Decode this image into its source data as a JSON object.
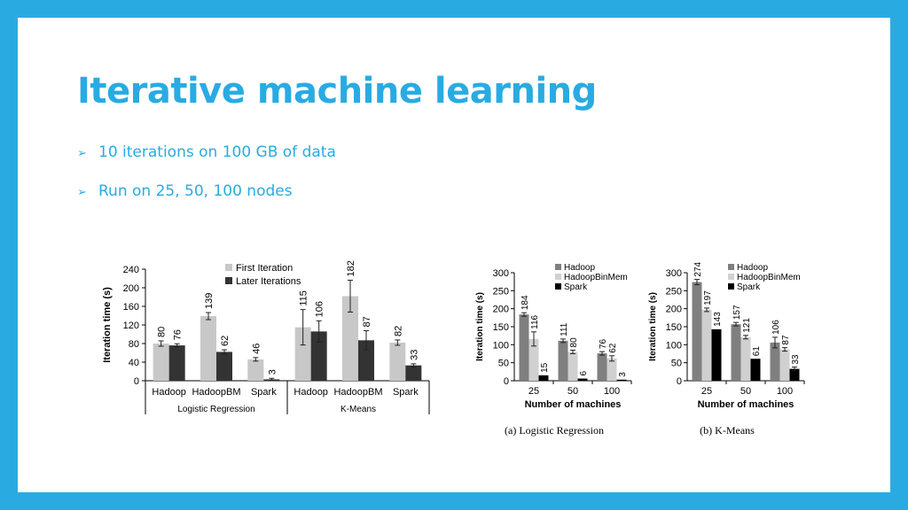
{
  "slide": {
    "title": "Iterative machine learning",
    "bullets": [
      "10 iterations on 100 GB of data",
      "Run on 25, 50, 100 nodes"
    ],
    "colors": {
      "accent": "#29abe2"
    }
  },
  "chart_data": [
    {
      "type": "bar",
      "ylabel": "Iteration time (s)",
      "ylim": [
        0,
        240
      ],
      "yticks": [
        0,
        40,
        80,
        120,
        160,
        200,
        240
      ],
      "legend_position": "top-center",
      "groups": [
        {
          "label": "Logistic Regression",
          "categories": [
            "Hadoop",
            "HadoopBM",
            "Spark"
          ]
        },
        {
          "label": "K-Means",
          "categories": [
            "Hadoop",
            "HadoopBM",
            "Spark"
          ]
        }
      ],
      "series": [
        {
          "name": "First Iteration",
          "color": "#c8c8c8",
          "values": [
            80,
            139,
            46,
            115,
            182,
            82
          ]
        },
        {
          "name": "Later Iterations",
          "color": "#333333",
          "values": [
            76,
            62,
            3,
            106,
            87,
            33
          ]
        }
      ]
    },
    {
      "type": "bar",
      "ylabel": "Iteration time (s)",
      "xlabel": "Number of machines",
      "caption": "(a) Logistic Regression",
      "categories": [
        "25",
        "50",
        "100"
      ],
      "ylim": [
        0,
        300
      ],
      "yticks": [
        0,
        50,
        100,
        150,
        200,
        250,
        300
      ],
      "legend_position": "top-right",
      "series": [
        {
          "name": "Hadoop",
          "color": "#7f7f7f",
          "values": [
            184,
            111,
            76
          ]
        },
        {
          "name": "HadoopBinMem",
          "color": "#d0d0d0",
          "values": [
            116,
            80,
            62
          ]
        },
        {
          "name": "Spark",
          "color": "#000000",
          "values": [
            15,
            6,
            3
          ]
        }
      ]
    },
    {
      "type": "bar",
      "ylabel": "Iteration time (s)",
      "xlabel": "Number of machines",
      "caption": "(b) K-Means",
      "categories": [
        "25",
        "50",
        "100"
      ],
      "ylim": [
        0,
        300
      ],
      "yticks": [
        0,
        50,
        100,
        150,
        200,
        250,
        300
      ],
      "legend_position": "top-right",
      "series": [
        {
          "name": "Hadoop",
          "color": "#7f7f7f",
          "values": [
            274,
            157,
            106
          ]
        },
        {
          "name": "HadoopBinMem",
          "color": "#d0d0d0",
          "values": [
            197,
            121,
            87
          ]
        },
        {
          "name": "Spark",
          "color": "#000000",
          "values": [
            143,
            61,
            33
          ]
        }
      ]
    }
  ]
}
